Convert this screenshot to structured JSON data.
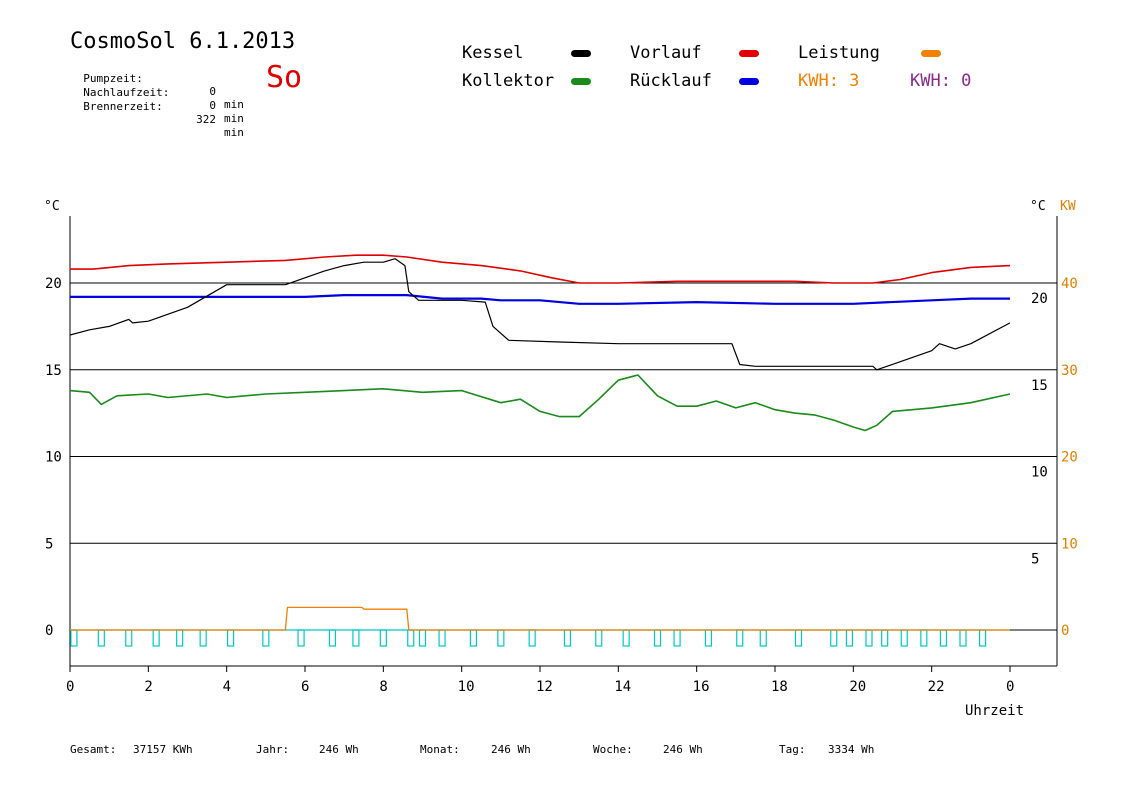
{
  "header": {
    "title": "CosmoSol 6.1.2013",
    "weekday": "So",
    "stats": [
      {
        "label": "Pumpzeit:",
        "value": "0",
        "unit": "min"
      },
      {
        "label": "Nachlaufzeit:",
        "value": "0",
        "unit": "min"
      },
      {
        "label": "Brennerzeit:",
        "value": "322",
        "unit": "min"
      }
    ]
  },
  "legend": {
    "kessel": "Kessel",
    "kollektor": "Kollektor",
    "vorlauf": "Vorlauf",
    "ruecklauf": "Rücklauf",
    "leistung": "Leistung",
    "kwh1": "KWH: 3",
    "kwh2": "KWH: 0"
  },
  "footer": {
    "gesamt_label": "Gesamt:",
    "gesamt_value": "37157 KWh",
    "jahr_label": "Jahr:",
    "jahr_value": "246 Wh",
    "monat_label": "Monat:",
    "monat_value": "246 Wh",
    "woche_label": "Woche:",
    "woche_value": "246 Wh",
    "tag_label": "Tag:",
    "tag_value": "3334 Wh"
  },
  "colors": {
    "kessel": "#000000",
    "kollektor": "#1a8a1a",
    "vorlauf": "#e00000",
    "ruecklauf": "#0000e0",
    "leistung": "#f08000",
    "kwh2": "#8a2a8a",
    "pump": "#00c8c8",
    "kw_axis": "#e08000"
  },
  "chart_data": {
    "type": "line",
    "xlabel": "Uhrzeit",
    "ylabel_left": "°C",
    "ylabel_right": "°C",
    "ylabel_kw": "KW",
    "xlim": [
      0,
      24
    ],
    "ylim": [
      -2,
      24.5
    ],
    "x_ticks": [
      "0",
      "2",
      "4",
      "6",
      "8",
      "10",
      "12",
      "14",
      "16",
      "18",
      "20",
      "22",
      "0"
    ],
    "y_ticks_left": [
      "0",
      "5",
      "10",
      "15",
      "20"
    ],
    "y_ticks_right": [
      "5",
      "10",
      "15",
      "20"
    ],
    "y_ticks_kw": [
      "0",
      "10",
      "20",
      "30",
      "40"
    ],
    "series": [
      {
        "name": "Vorlauf",
        "color": "#e00000",
        "x": [
          0,
          0.6,
          1.5,
          2.5,
          4,
          5.5,
          6.5,
          7.3,
          8.0,
          8.6,
          9.5,
          10.5,
          11.5,
          12.3,
          13.0,
          14.0,
          15.5,
          17.0,
          18.5,
          19.5,
          20.5,
          21.2,
          22.0,
          23.0,
          24.0
        ],
        "y": [
          20.8,
          20.8,
          21.0,
          21.1,
          21.2,
          21.3,
          21.5,
          21.6,
          21.6,
          21.5,
          21.2,
          21.0,
          20.7,
          20.3,
          20.0,
          20.0,
          20.1,
          20.1,
          20.1,
          20.0,
          20.0,
          20.2,
          20.6,
          20.9,
          21.0
        ]
      },
      {
        "name": "Rücklauf",
        "color": "#0000e0",
        "x": [
          0,
          2,
          4,
          6,
          7,
          8,
          8.6,
          9.5,
          10.5,
          11.0,
          12,
          13,
          14,
          16,
          18,
          20,
          22,
          23,
          24
        ],
        "y": [
          19.2,
          19.2,
          19.2,
          19.2,
          19.3,
          19.3,
          19.3,
          19.1,
          19.1,
          19.0,
          19.0,
          18.8,
          18.8,
          18.9,
          18.8,
          18.8,
          19.0,
          19.1,
          19.1
        ]
      },
      {
        "name": "Kessel",
        "color": "#000000",
        "x": [
          0,
          0.5,
          1.0,
          1.5,
          1.6,
          2.0,
          3.0,
          4.0,
          4.5,
          5.5,
          6.0,
          6.5,
          7.0,
          7.5,
          8.0,
          8.3,
          8.55,
          8.65,
          8.9,
          10.0,
          10.6,
          10.8,
          11.2,
          12.5,
          14.0,
          15.5,
          16.9,
          17.1,
          17.5,
          19.0,
          20.5,
          20.6,
          21.5,
          22.0,
          22.2,
          22.6,
          23.0,
          24.0
        ],
        "y": [
          17.0,
          17.3,
          17.5,
          17.9,
          17.7,
          17.8,
          18.6,
          19.9,
          19.9,
          19.9,
          20.3,
          20.7,
          21.0,
          21.2,
          21.2,
          21.4,
          21.0,
          19.5,
          19.0,
          19.0,
          18.9,
          17.5,
          16.7,
          16.6,
          16.5,
          16.5,
          16.5,
          15.3,
          15.2,
          15.2,
          15.2,
          15.0,
          15.7,
          16.1,
          16.5,
          16.2,
          16.5,
          17.7
        ]
      },
      {
        "name": "Kollektor",
        "color": "#1a8a1a",
        "x": [
          0,
          0.5,
          0.8,
          1.2,
          2.0,
          2.5,
          3.5,
          4.0,
          5.0,
          6.0,
          7.0,
          8.0,
          9.0,
          10.0,
          11.0,
          11.5,
          12.0,
          12.5,
          13.0,
          13.5,
          14.0,
          14.5,
          15.0,
          15.5,
          16.0,
          16.5,
          17.0,
          17.5,
          18.0,
          18.5,
          19.0,
          19.5,
          20.0,
          20.3,
          20.6,
          21.0,
          22.0,
          23.0,
          24.0
        ],
        "y": [
          13.8,
          13.7,
          13.0,
          13.5,
          13.6,
          13.4,
          13.6,
          13.4,
          13.6,
          13.7,
          13.8,
          13.9,
          13.7,
          13.8,
          13.1,
          13.3,
          12.6,
          12.3,
          12.3,
          13.3,
          14.4,
          14.7,
          13.5,
          12.9,
          12.9,
          13.2,
          12.8,
          13.1,
          12.7,
          12.5,
          12.4,
          12.1,
          11.7,
          11.5,
          11.8,
          12.6,
          12.8,
          13.1,
          13.6
        ]
      },
      {
        "name": "Leistung",
        "color": "#f08000",
        "axis": "KW",
        "x": [
          0,
          5.5,
          5.55,
          7.45,
          7.5,
          8.6,
          8.65,
          24
        ],
        "y": [
          0,
          0,
          1.3,
          1.3,
          1.2,
          1.2,
          0,
          0
        ]
      }
    ],
    "pump_pulses_hours": [
      0.1,
      0.8,
      1.5,
      2.2,
      2.8,
      3.4,
      4.1,
      5.0,
      5.9,
      6.7,
      7.3,
      8.0,
      8.7,
      9.0,
      9.5,
      10.3,
      11.0,
      11.8,
      12.7,
      13.5,
      14.2,
      15.0,
      15.5,
      16.3,
      17.1,
      17.7,
      18.6,
      19.5,
      19.9,
      20.4,
      20.8,
      21.3,
      21.8,
      22.3,
      22.8,
      23.3
    ]
  }
}
